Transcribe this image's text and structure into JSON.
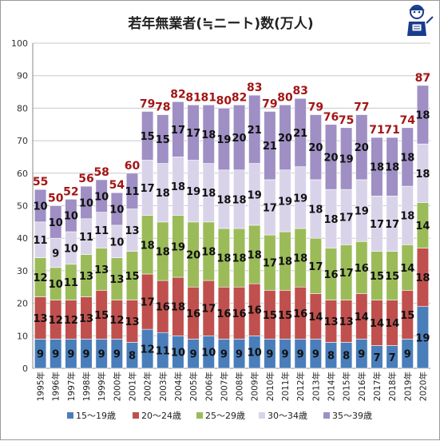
{
  "chart_data": {
    "type": "bar",
    "stacked": true,
    "title": "若年無業者(≒ニート)数(万人)",
    "categories": [
      "1995年",
      "1996年",
      "1997年",
      "1998年",
      "1999年",
      "2000年",
      "2001年",
      "2002年",
      "2003年",
      "2004年",
      "2005年",
      "2006年",
      "2007年",
      "2008年",
      "2009年",
      "2010年",
      "2011年",
      "2012年",
      "2013年",
      "2014年",
      "2015年",
      "2016年",
      "2017年",
      "2018年",
      "2019年",
      "2020年"
    ],
    "ylim": [
      0,
      100
    ],
    "yticks": [
      "0",
      "10",
      "20",
      "30",
      "40",
      "50",
      "60",
      "70",
      "80",
      "90",
      "100"
    ],
    "grid": true,
    "legend_position": "bottom",
    "series": [
      {
        "name": "15～19歳",
        "color": "#4a7ebb",
        "values": [
          9,
          9,
          9,
          9,
          9,
          9,
          8,
          12,
          11,
          10,
          9,
          10,
          9,
          9,
          10,
          9,
          9,
          9,
          9,
          8,
          8,
          9,
          7,
          7,
          9,
          19
        ]
      },
      {
        "name": "20～24歳",
        "color": "#c0504d",
        "values": [
          13,
          12,
          12,
          13,
          15,
          12,
          13,
          17,
          16,
          18,
          16,
          17,
          16,
          16,
          16,
          15,
          15,
          16,
          14,
          13,
          13,
          14,
          14,
          14,
          15,
          18
        ]
      },
      {
        "name": "25～29歳",
        "color": "#9bbb59",
        "values": [
          12,
          10,
          11,
          13,
          13,
          13,
          15,
          18,
          18,
          19,
          20,
          18,
          18,
          18,
          18,
          17,
          18,
          18,
          17,
          16,
          17,
          16,
          15,
          15,
          14,
          14
        ]
      },
      {
        "name": "30～34歳",
        "color": "#d9d3ea",
        "values": [
          11,
          9,
          10,
          11,
          11,
          10,
          13,
          17,
          18,
          18,
          19,
          18,
          18,
          18,
          19,
          17,
          19,
          19,
          18,
          18,
          17,
          19,
          17,
          17,
          18,
          18
        ]
      },
      {
        "name": "35～39歳",
        "color": "#9f8fc4",
        "values": [
          10,
          10,
          10,
          10,
          10,
          10,
          11,
          15,
          15,
          17,
          17,
          18,
          19,
          20,
          21,
          21,
          20,
          21,
          20,
          20,
          19,
          20,
          18,
          18,
          18,
          18
        ]
      }
    ],
    "totals": [
      "55",
      "50",
      "52",
      "56",
      "58",
      "54",
      "60",
      "79",
      "78",
      "82",
      "81",
      "81",
      "80",
      "82",
      "83",
      "79",
      "80",
      "83",
      "79",
      "76",
      "75",
      "77",
      "71",
      "71",
      "74",
      "87"
    ],
    "totals_color": "#a31515"
  }
}
